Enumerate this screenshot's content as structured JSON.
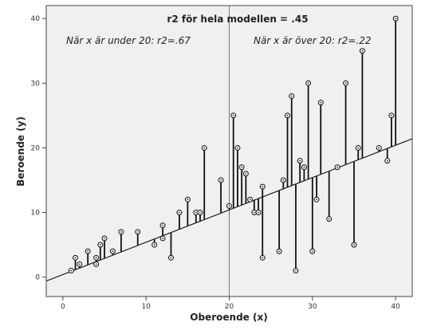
{
  "chart_data": {
    "type": "scatter",
    "title": "r2 för hela modellen = .45",
    "xlabel": "Oberoende (x)",
    "ylabel": "Beroende (y)",
    "xlim": [
      -2,
      42
    ],
    "ylim": [
      -3,
      42
    ],
    "xticks": [
      0,
      10,
      20,
      30,
      40
    ],
    "yticks": [
      0,
      10,
      20,
      30,
      40
    ],
    "grid": false,
    "regression_line": {
      "intercept": 0.4,
      "slope": 0.5
    },
    "reference_line_x": 20,
    "residual_lines": true,
    "annotations": [
      {
        "text": "När x är under 20: r2=.67",
        "position": "top-left"
      },
      {
        "text": "När x är över 20: r2=.22",
        "position": "top-right"
      }
    ],
    "points": [
      {
        "x": 1.0,
        "y": 1.0
      },
      {
        "x": 1.5,
        "y": 3.0
      },
      {
        "x": 2.0,
        "y": 2.0
      },
      {
        "x": 3.0,
        "y": 4.0
      },
      {
        "x": 4.0,
        "y": 3.0
      },
      {
        "x": 4.0,
        "y": 2.0
      },
      {
        "x": 4.5,
        "y": 5.0
      },
      {
        "x": 5.0,
        "y": 6.0
      },
      {
        "x": 6.0,
        "y": 4.0
      },
      {
        "x": 7.0,
        "y": 7.0
      },
      {
        "x": 9.0,
        "y": 7.0
      },
      {
        "x": 11.0,
        "y": 5.0
      },
      {
        "x": 12.0,
        "y": 6.0
      },
      {
        "x": 12.0,
        "y": 8.0
      },
      {
        "x": 13.0,
        "y": 3.0
      },
      {
        "x": 14.0,
        "y": 10.0
      },
      {
        "x": 15.0,
        "y": 12.0
      },
      {
        "x": 16.0,
        "y": 10.0
      },
      {
        "x": 16.5,
        "y": 10.0
      },
      {
        "x": 17.0,
        "y": 20.0
      },
      {
        "x": 19.0,
        "y": 15.0
      },
      {
        "x": 20.0,
        "y": 11.0
      },
      {
        "x": 20.5,
        "y": 25.0
      },
      {
        "x": 21.0,
        "y": 20.0
      },
      {
        "x": 21.5,
        "y": 17.0
      },
      {
        "x": 22.0,
        "y": 16.0
      },
      {
        "x": 22.5,
        "y": 12.0
      },
      {
        "x": 23.0,
        "y": 10.0
      },
      {
        "x": 23.5,
        "y": 10.0
      },
      {
        "x": 24.0,
        "y": 14.0
      },
      {
        "x": 24.0,
        "y": 3.0
      },
      {
        "x": 26.0,
        "y": 4.0
      },
      {
        "x": 26.5,
        "y": 15.0
      },
      {
        "x": 27.0,
        "y": 25.0
      },
      {
        "x": 27.5,
        "y": 28.0
      },
      {
        "x": 28.0,
        "y": 1.0
      },
      {
        "x": 28.5,
        "y": 18.0
      },
      {
        "x": 29.0,
        "y": 17.0
      },
      {
        "x": 29.5,
        "y": 30.0
      },
      {
        "x": 30.0,
        "y": 4.0
      },
      {
        "x": 30.5,
        "y": 12.0
      },
      {
        "x": 31.0,
        "y": 27.0
      },
      {
        "x": 32.0,
        "y": 9.0
      },
      {
        "x": 33.0,
        "y": 17.0
      },
      {
        "x": 34.0,
        "y": 30.0
      },
      {
        "x": 35.0,
        "y": 5.0
      },
      {
        "x": 35.5,
        "y": 20.0
      },
      {
        "x": 36.0,
        "y": 35.0
      },
      {
        "x": 38.0,
        "y": 20.0
      },
      {
        "x": 39.0,
        "y": 18.0
      },
      {
        "x": 39.5,
        "y": 25.0
      },
      {
        "x": 40.0,
        "y": 40.0
      }
    ]
  }
}
